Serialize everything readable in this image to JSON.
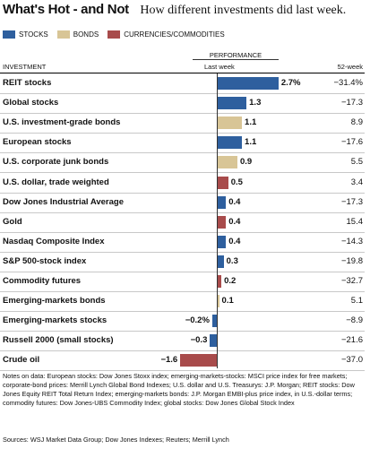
{
  "header": {
    "title": "What's Hot - and Not",
    "subtitle": "How different investments did last week."
  },
  "legend": [
    {
      "label": "STOCKS",
      "color": "#2e5f9e"
    },
    {
      "label": "BONDS",
      "color": "#d8c596"
    },
    {
      "label": "CURRENCIES/COMMODITIES",
      "color": "#a84b4b"
    }
  ],
  "columns": {
    "performance": "PERFORMANCE",
    "investment": "INVESTMENT",
    "last_week": "Last week",
    "week52": "52-week"
  },
  "chart_data": {
    "type": "bar",
    "orientation": "horizontal",
    "title": "What's Hot - and Not",
    "subtitle": "How different investments did last week.",
    "xlabel": "Last week",
    "categories": [
      "REIT stocks",
      "Global stocks",
      "U.S. investment-grade bonds",
      "European stocks",
      "U.S. corporate junk bonds",
      "U.S. dollar, trade weighted",
      "Dow Jones Industrial Average",
      "Gold",
      "Nasdaq Composite Index",
      "S&P 500-stock index",
      "Commodity futures",
      "Emerging-markets bonds",
      "Emerging-markets stocks",
      "Russell 2000 (small stocks)",
      "Crude oil"
    ],
    "rows": [
      {
        "label": "REIT stocks",
        "value": 2.7,
        "text": "2.7%",
        "week52": "−31.4%",
        "group": "stocks"
      },
      {
        "label": "Global stocks",
        "value": 1.3,
        "text": "1.3",
        "week52": "−17.3",
        "group": "stocks"
      },
      {
        "label": "U.S. investment-grade bonds",
        "value": 1.1,
        "text": "1.1",
        "week52": "8.9",
        "group": "bonds"
      },
      {
        "label": "European stocks",
        "value": 1.1,
        "text": "1.1",
        "week52": "−17.6",
        "group": "stocks"
      },
      {
        "label": "U.S. corporate junk bonds",
        "value": 0.9,
        "text": "0.9",
        "week52": "5.5",
        "group": "bonds"
      },
      {
        "label": "U.S. dollar, trade weighted",
        "value": 0.5,
        "text": "0.5",
        "week52": "3.4",
        "group": "commodities"
      },
      {
        "label": "Dow Jones Industrial Average",
        "value": 0.4,
        "text": "0.4",
        "week52": "−17.3",
        "group": "stocks"
      },
      {
        "label": "Gold",
        "value": 0.4,
        "text": "0.4",
        "week52": "15.4",
        "group": "commodities"
      },
      {
        "label": "Nasdaq Composite Index",
        "value": 0.4,
        "text": "0.4",
        "week52": "−14.3",
        "group": "stocks"
      },
      {
        "label": "S&P 500-stock index",
        "value": 0.3,
        "text": "0.3",
        "week52": "−19.8",
        "group": "stocks"
      },
      {
        "label": "Commodity futures",
        "value": 0.2,
        "text": "0.2",
        "week52": "−32.7",
        "group": "commodities"
      },
      {
        "label": "Emerging-markets bonds",
        "value": 0.1,
        "text": "0.1",
        "week52": "5.1",
        "group": "bonds"
      },
      {
        "label": "Emerging-markets stocks",
        "value": -0.2,
        "text": "−0.2%",
        "week52": "−8.9",
        "group": "stocks"
      },
      {
        "label": "Russell 2000 (small stocks)",
        "value": -0.3,
        "text": "−0.3",
        "week52": "−21.6",
        "group": "stocks"
      },
      {
        "label": "Crude oil",
        "value": -1.6,
        "text": "−1.6",
        "week52": "−37.0",
        "group": "commodities"
      }
    ],
    "colors": {
      "stocks": "#2e5f9e",
      "bonds": "#d8c596",
      "commodities": "#a84b4b"
    },
    "xlim": [
      -1.6,
      2.7
    ]
  },
  "notes": "Notes on data: European stocks: Dow Jones Stoxx index; emerging-markets-stocks: MSCI price index for free markets; corporate-bond prices: Merrill Lynch Global Bond Indexes; U.S. dollar and U.S. Treasurys: J.P. Morgan; REIT stocks: Dow Jones Equity REIT Total Return Index; emerging-markets bonds: J.P. Morgan EMBI-plus price index, in U.S.-dollar terms; commodity futures: Dow Jones-UBS Commodity Index; global stocks: Dow Jones Global Stock Index",
  "sources": "Sources: WSJ Market Data Group; Dow Jones Indexes; Reuters; Merrill Lynch"
}
